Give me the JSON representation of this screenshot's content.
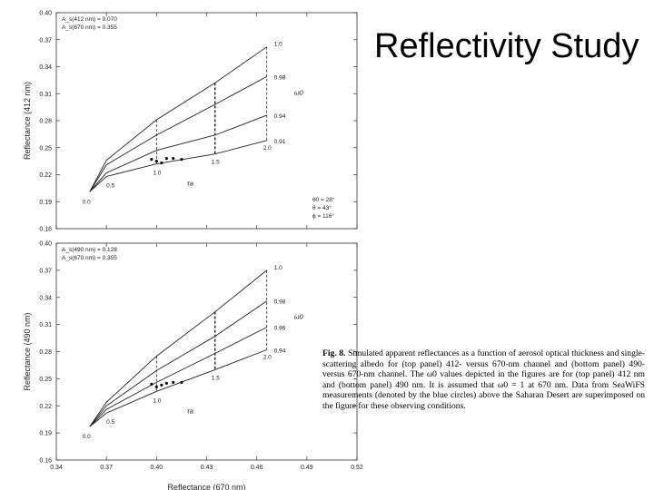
{
  "slide": {
    "title": "Reflectivity Study"
  },
  "caption": {
    "label": "Fig. 8.",
    "text": "Simulated apparent reflectances as a function of aerosol optical thickness and single-scattering albedo for (top panel) 412- versus 670-nm channel and (bottom panel) 490- versus 670-nm channel. The ω0 values depicted in the figures are for (top panel) 412 nm and (bottom panel) 490 nm. It is assumed that ω0 = 1 at 670 nm. Data from SeaWiFS measurements (denoted by the blue circles) above the Saharan Desert are superimposed on the figure for these observing conditions."
  },
  "chart_data": [
    {
      "type": "line",
      "panel": "top",
      "xlabel": "",
      "ylabel": "Reflectance (412 nm)",
      "xlim": [
        0.34,
        0.52
      ],
      "ylim": [
        0.16,
        0.4
      ],
      "yticks": [
        "0.16",
        "0.19",
        "0.22",
        "0.25",
        "0.28",
        "0.31",
        "0.34",
        "0.37",
        "0.40"
      ],
      "surface_albedo": [
        "A_s(412 nm) = 0.070",
        "A_s(670 nm) = 0.355"
      ],
      "geometry": [
        "θ0 = 28°",
        "θ = 43°",
        "ϕ = 116°"
      ],
      "omega_label": "ω0",
      "tau_label": "τa",
      "series": [
        {
          "name": "1.0",
          "x": [
            0.36,
            0.37,
            0.4,
            0.435,
            0.466
          ],
          "y": [
            0.201,
            0.236,
            0.281,
            0.322,
            0.362
          ]
        },
        {
          "name": "0.98",
          "x": [
            0.36,
            0.37,
            0.4,
            0.435,
            0.466
          ],
          "y": [
            0.201,
            0.231,
            0.264,
            0.298,
            0.329
          ]
        },
        {
          "name": "0.94",
          "x": [
            0.36,
            0.37,
            0.4,
            0.435,
            0.466
          ],
          "y": [
            0.201,
            0.222,
            0.247,
            0.264,
            0.286
          ]
        },
        {
          "name": "0.91",
          "x": [
            0.36,
            0.37,
            0.4,
            0.435,
            0.466
          ],
          "y": [
            0.201,
            0.218,
            0.232,
            0.243,
            0.258
          ]
        }
      ],
      "tau_values": [
        {
          "label": "0.0",
          "x": 0.36,
          "y": 0.201
        },
        {
          "label": "0.5",
          "x": 0.37,
          "y": 0.218
        },
        {
          "label": "1.0",
          "x": 0.4,
          "y": 0.232
        },
        {
          "label": "1.5",
          "x": 0.435,
          "y": 0.243
        },
        {
          "label": "2.0",
          "x": 0.466,
          "y": 0.258
        }
      ],
      "observations": {
        "x": [
          0.397,
          0.4,
          0.403,
          0.406,
          0.41,
          0.415
        ],
        "y": [
          0.237,
          0.235,
          0.233,
          0.238,
          0.238,
          0.237
        ]
      }
    },
    {
      "type": "line",
      "panel": "bottom",
      "xlabel": "Reflectance (670 nm)",
      "ylabel": "Reflectance (490 nm)",
      "xlim": [
        0.34,
        0.52
      ],
      "ylim": [
        0.16,
        0.4
      ],
      "xticks": [
        "0.34",
        "0.37",
        "0.40",
        "0.43",
        "0.46",
        "0.49",
        "0.52"
      ],
      "yticks": [
        "0.16",
        "0.19",
        "0.22",
        "0.25",
        "0.28",
        "0.31",
        "0.34",
        "0.37",
        "0.40"
      ],
      "surface_albedo": [
        "A_s(490 nm) = 0.128",
        "A_s(670 nm) = 0.355"
      ],
      "omega_label": "ω0",
      "tau_label": "τa",
      "series": [
        {
          "name": "1.0",
          "x": [
            0.36,
            0.37,
            0.4,
            0.435,
            0.466
          ],
          "y": [
            0.197,
            0.224,
            0.275,
            0.324,
            0.37
          ]
        },
        {
          "name": "0.98",
          "x": [
            0.36,
            0.37,
            0.4,
            0.435,
            0.466
          ],
          "y": [
            0.197,
            0.22,
            0.259,
            0.297,
            0.336
          ]
        },
        {
          "name": "0.96",
          "x": [
            0.36,
            0.37,
            0.4,
            0.435,
            0.466
          ],
          "y": [
            0.197,
            0.216,
            0.246,
            0.278,
            0.307
          ]
        },
        {
          "name": "0.94",
          "x": [
            0.36,
            0.37,
            0.4,
            0.435,
            0.466
          ],
          "y": [
            0.197,
            0.212,
            0.236,
            0.26,
            0.282
          ]
        }
      ],
      "tau_values": [
        {
          "label": "0.0",
          "x": 0.36,
          "y": 0.197
        },
        {
          "label": "0.5",
          "x": 0.37,
          "y": 0.212
        },
        {
          "label": "1.0",
          "x": 0.4,
          "y": 0.236
        },
        {
          "label": "1.5",
          "x": 0.435,
          "y": 0.26
        },
        {
          "label": "2.0",
          "x": 0.466,
          "y": 0.282
        }
      ],
      "observations": {
        "x": [
          0.397,
          0.4,
          0.403,
          0.406,
          0.41,
          0.415
        ],
        "y": [
          0.244,
          0.241,
          0.243,
          0.245,
          0.246,
          0.246
        ]
      }
    }
  ]
}
